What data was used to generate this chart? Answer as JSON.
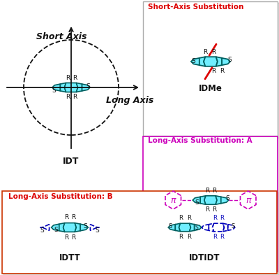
{
  "bg_color": "#ffffff",
  "teal_fill": "#70eeff",
  "teal_dark": "#006060",
  "red_color": "#dd0000",
  "magenta_color": "#cc00bb",
  "blue_color": "#0000bb",
  "black_color": "#111111",
  "short_axis_text": "Short Axis",
  "long_axis_text": "Long Axis",
  "bottom_label_b": "Long-Axis Substitution: B",
  "top_right_label1": "Short-Axis Substitution",
  "top_right_label2": "Long-Axis Substitution: A",
  "idt_label": "IDT",
  "idme_label": "IDMe",
  "idtt_label": "IDTT",
  "idtidt_label": "IDTIDT"
}
